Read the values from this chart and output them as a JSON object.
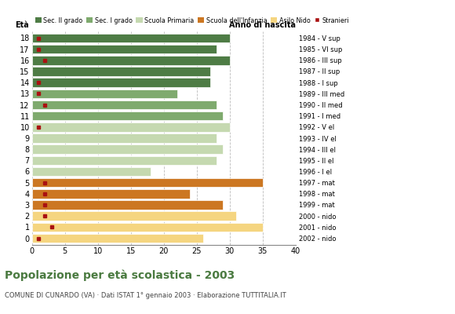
{
  "ages": [
    18,
    17,
    16,
    15,
    14,
    13,
    12,
    11,
    10,
    9,
    8,
    7,
    6,
    5,
    4,
    3,
    2,
    1,
    0
  ],
  "years": [
    "1984 - V sup",
    "1985 - VI sup",
    "1986 - III sup",
    "1987 - II sup",
    "1988 - I sup",
    "1989 - III med",
    "1990 - II med",
    "1991 - I med",
    "1992 - V el",
    "1993 - IV el",
    "1994 - III el",
    "1995 - II el",
    "1996 - I el",
    "1997 - mat",
    "1998 - mat",
    "1999 - mat",
    "2000 - nido",
    "2001 - nido",
    "2002 - nido"
  ],
  "bar_values": [
    30,
    28,
    30,
    27,
    27,
    22,
    28,
    29,
    30,
    28,
    29,
    28,
    18,
    35,
    24,
    29,
    31,
    35,
    26
  ],
  "bar_colors": [
    "#4e7c45",
    "#4e7c45",
    "#4e7c45",
    "#4e7c45",
    "#4e7c45",
    "#7faa6e",
    "#7faa6e",
    "#7faa6e",
    "#c5d9b0",
    "#c5d9b0",
    "#c5d9b0",
    "#c5d9b0",
    "#c5d9b0",
    "#cc7722",
    "#cc7722",
    "#cc7722",
    "#f5d580",
    "#f5d580",
    "#f5d580"
  ],
  "stranieri_values": [
    1,
    1,
    2,
    0,
    1,
    1,
    2,
    0,
    1,
    0,
    0,
    0,
    0,
    2,
    2,
    2,
    2,
    3,
    1
  ],
  "legend_labels": [
    "Sec. II grado",
    "Sec. I grado",
    "Scuola Primaria",
    "Scuola dell'Infanzia",
    "Asilo Nido",
    "Stranieri"
  ],
  "legend_colors": [
    "#4e7c45",
    "#7faa6e",
    "#c5d9b0",
    "#cc7722",
    "#f5d580",
    "#aa1111"
  ],
  "title": "Popolazione per età scolastica - 2003",
  "subtitle": "COMUNE DI CUNARDO (VA) · Dati ISTAT 1° gennaio 2003 · Elaborazione TUTTITALIA.IT",
  "xlabel_age": "Età",
  "xlabel_year": "Anno di nascita",
  "xlim": [
    0,
    40
  ],
  "xticks": [
    0,
    5,
    10,
    15,
    20,
    25,
    30,
    35,
    40
  ],
  "background_color": "#ffffff",
  "bar_height": 0.82,
  "grid_color": "#bbbbbb"
}
